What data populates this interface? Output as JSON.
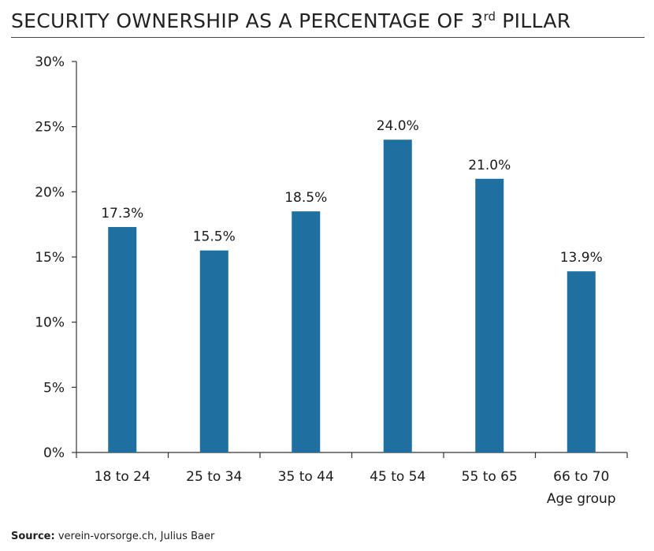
{
  "title": {
    "main": "SECURITY OWNERSHIP AS A PERCENTAGE OF 3",
    "superscript": "rd",
    "tail": " PILLAR"
  },
  "source": {
    "label": "Source:",
    "text": " verein-vorsorge.ch, Julius Baer"
  },
  "colors": {
    "bar": "#1f6fa1",
    "axis": "#333333",
    "text": "#1a1a1a"
  },
  "chart_data": {
    "type": "bar",
    "title": "SECURITY OWNERSHIP AS A PERCENTAGE OF 3rd PILLAR",
    "xlabel": "Age group",
    "ylabel": "",
    "categories": [
      "18 to 24",
      "25 to 34",
      "35 to 44",
      "45 to 54",
      "55 to 65",
      "66 to 70"
    ],
    "values": [
      17.3,
      15.5,
      18.5,
      24.0,
      21.0,
      13.9
    ],
    "value_labels": [
      "17.3%",
      "15.5%",
      "18.5%",
      "24.0%",
      "21.0%",
      "13.9%"
    ],
    "ylim": [
      0,
      30
    ],
    "yticks": [
      0,
      5,
      10,
      15,
      20,
      25,
      30
    ],
    "ytick_labels": [
      "0%",
      "5%",
      "10%",
      "15%",
      "20%",
      "25%",
      "30%"
    ],
    "grid": false,
    "legend": "none"
  }
}
